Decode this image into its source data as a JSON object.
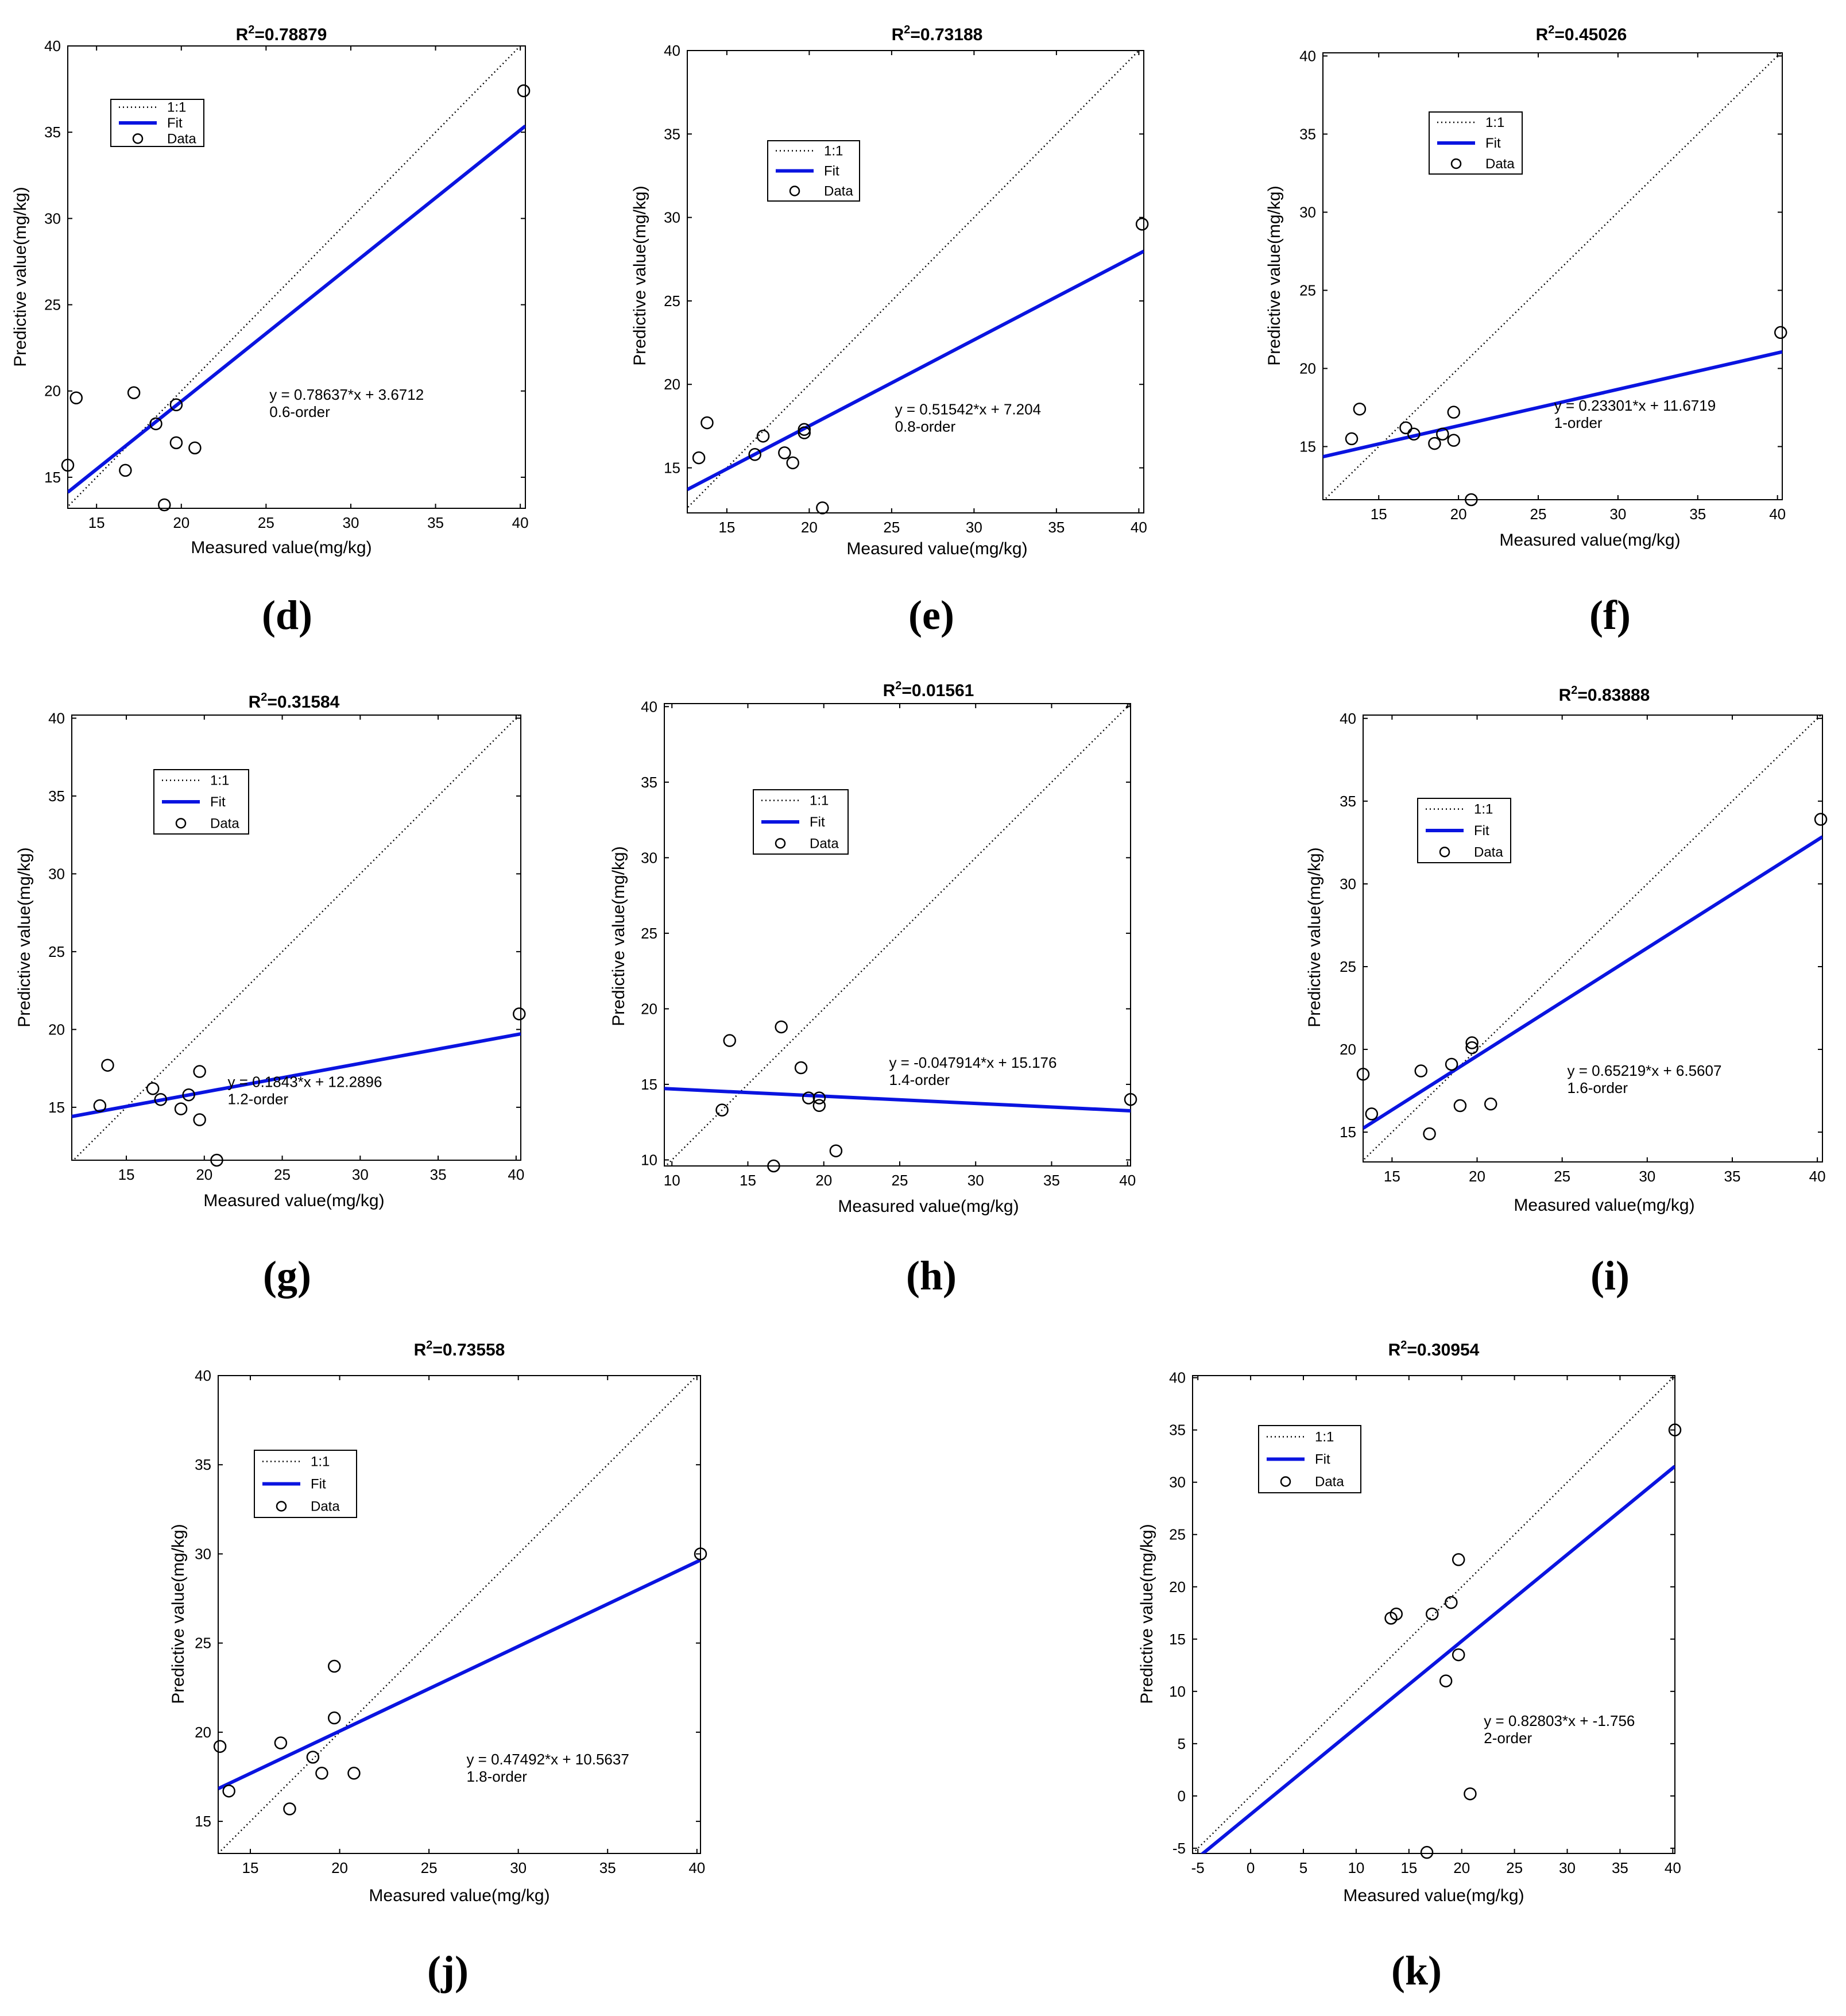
{
  "chart_data": [
    {
      "type": "scatter",
      "panel_label": "(d)",
      "title": "R²=0.78879",
      "xlabel": "Measured value(mg/kg)",
      "ylabel": "Predictive value(mg/kg)",
      "xlim": [
        13.3,
        40.3
      ],
      "ylim": [
        13.2,
        40
      ],
      "xticks": [
        15,
        20,
        25,
        30,
        35,
        40
      ],
      "yticks": [
        15,
        20,
        25,
        30,
        35,
        40
      ],
      "legend": {
        "position": "top-left",
        "entries": [
          "1:1",
          "Fit",
          "Data"
        ]
      },
      "annotation": [
        "y = 0.78637*x + 3.6712",
        "0.6-order"
      ],
      "annotation_at": [
        25.2,
        19.5
      ],
      "fit": {
        "slope": 0.78637,
        "intercept": 3.6712,
        "color": "#0a14e0"
      },
      "points": [
        [
          13.3,
          15.7
        ],
        [
          13.8,
          19.6
        ],
        [
          16.7,
          15.4
        ],
        [
          17.2,
          19.9
        ],
        [
          18.5,
          18.1
        ],
        [
          19.0,
          13.4
        ],
        [
          19.7,
          19.2
        ],
        [
          19.7,
          17.0
        ],
        [
          20.8,
          16.7
        ],
        [
          40.2,
          37.4
        ]
      ]
    },
    {
      "type": "scatter",
      "panel_label": "(e)",
      "title": "R²=0.73188",
      "xlabel": "Measured value(mg/kg)",
      "ylabel": "Predictive value(mg/kg)",
      "xlim": [
        12.6,
        40.3
      ],
      "ylim": [
        12.3,
        40
      ],
      "xticks": [
        15,
        20,
        25,
        30,
        35,
        40
      ],
      "yticks": [
        15,
        20,
        25,
        30,
        35,
        40
      ],
      "legend": {
        "position": "top-left",
        "entries": [
          "1:1",
          "Fit",
          "Data"
        ]
      },
      "annotation": [
        "y = 0.51542*x + 7.204",
        "0.8-order"
      ],
      "annotation_at": [
        25.2,
        18.2
      ],
      "fit": {
        "slope": 0.51542,
        "intercept": 7.204,
        "color": "#0a14e0"
      },
      "points": [
        [
          13.3,
          15.6
        ],
        [
          13.8,
          17.7
        ],
        [
          16.7,
          15.8
        ],
        [
          17.2,
          16.9
        ],
        [
          18.5,
          15.9
        ],
        [
          19.0,
          15.3
        ],
        [
          19.7,
          17.3
        ],
        [
          19.7,
          17.1
        ],
        [
          20.8,
          12.6
        ],
        [
          40.2,
          29.6
        ]
      ]
    },
    {
      "type": "scatter",
      "panel_label": "(f)",
      "title": "R²=0.45026",
      "xlabel": "Measured value(mg/kg)",
      "ylabel": "Predictive value(mg/kg)",
      "xlim": [
        11.5,
        40.3
      ],
      "ylim": [
        11.6,
        40.2
      ],
      "xticks": [
        15,
        20,
        25,
        30,
        35,
        40
      ],
      "yticks": [
        15,
        20,
        25,
        30,
        35,
        40
      ],
      "legend": {
        "position": "top-left",
        "entries": [
          "1:1",
          "Fit",
          "Data"
        ]
      },
      "annotation": [
        "y = 0.23301*x + 11.6719",
        "1-order"
      ],
      "annotation_at": [
        26.0,
        17.3
      ],
      "fit": {
        "slope": 0.23301,
        "intercept": 11.6719,
        "color": "#0a14e0"
      },
      "points": [
        [
          13.3,
          15.5
        ],
        [
          13.8,
          17.4
        ],
        [
          16.7,
          16.2
        ],
        [
          17.2,
          15.8
        ],
        [
          18.5,
          15.2
        ],
        [
          19.0,
          15.8
        ],
        [
          19.7,
          17.2
        ],
        [
          19.7,
          15.4
        ],
        [
          20.8,
          11.6
        ],
        [
          40.2,
          22.3
        ]
      ]
    },
    {
      "type": "scatter",
      "panel_label": "(g)",
      "title": "R²=0.31584",
      "xlabel": "Measured value(mg/kg)",
      "ylabel": "Predictive value(mg/kg)",
      "xlim": [
        11.5,
        40.3
      ],
      "ylim": [
        11.6,
        40.2
      ],
      "xticks": [
        15,
        20,
        25,
        30,
        35,
        40
      ],
      "yticks": [
        15,
        20,
        25,
        30,
        35,
        40
      ],
      "legend": {
        "position": "top-left",
        "entries": [
          "1:1",
          "Fit",
          "Data"
        ]
      },
      "annotation": [
        "y = 0.1843*x + 12.2896",
        "1.2-order"
      ],
      "annotation_at": [
        21.5,
        16.3
      ],
      "fit": {
        "slope": 0.1843,
        "intercept": 12.2896,
        "color": "#0a14e0"
      },
      "points": [
        [
          13.3,
          15.1
        ],
        [
          13.8,
          17.7
        ],
        [
          16.7,
          16.2
        ],
        [
          17.2,
          15.5
        ],
        [
          18.5,
          14.9
        ],
        [
          19.0,
          15.8
        ],
        [
          19.7,
          17.3
        ],
        [
          19.7,
          14.2
        ],
        [
          20.8,
          11.6
        ],
        [
          40.2,
          21.0
        ]
      ]
    },
    {
      "type": "scatter",
      "panel_label": "(h)",
      "title": "R²=0.01561",
      "xlabel": "Measured value(mg/kg)",
      "ylabel": "Predictive value(mg/kg)",
      "xlim": [
        9.5,
        40.2
      ],
      "ylim": [
        9.6,
        40.2
      ],
      "xticks": [
        10,
        15,
        20,
        25,
        30,
        35,
        40
      ],
      "yticks": [
        10,
        15,
        20,
        25,
        30,
        35,
        40
      ],
      "legend": {
        "position": "top-left",
        "entries": [
          "1:1",
          "Fit",
          "Data"
        ]
      },
      "annotation": [
        "y = -0.047914*x + 15.176",
        "1.4-order"
      ],
      "annotation_at": [
        24.3,
        16.1
      ],
      "fit": {
        "slope": -0.047914,
        "intercept": 15.176,
        "color": "#0a14e0"
      },
      "points": [
        [
          13.3,
          13.3
        ],
        [
          13.8,
          17.9
        ],
        [
          16.7,
          9.6
        ],
        [
          17.2,
          18.8
        ],
        [
          18.5,
          16.1
        ],
        [
          19.0,
          14.1
        ],
        [
          19.7,
          14.1
        ],
        [
          19.7,
          13.6
        ],
        [
          20.8,
          10.6
        ],
        [
          40.2,
          14.0
        ]
      ]
    },
    {
      "type": "scatter",
      "panel_label": "(i)",
      "title": "R²=0.83888",
      "xlabel": "Measured value(mg/kg)",
      "ylabel": "Predictive value(mg/kg)",
      "xlim": [
        13.3,
        40.3
      ],
      "ylim": [
        13.2,
        40.2
      ],
      "xticks": [
        15,
        20,
        25,
        30,
        35,
        40
      ],
      "yticks": [
        15,
        20,
        25,
        30,
        35,
        40
      ],
      "legend": {
        "position": "top-left",
        "entries": [
          "1:1",
          "Fit",
          "Data"
        ]
      },
      "annotation": [
        "y = 0.65219*x + 6.5607",
        "1.6-order"
      ],
      "annotation_at": [
        25.3,
        18.4
      ],
      "fit": {
        "slope": 0.65219,
        "intercept": 6.5607,
        "color": "#0a14e0"
      },
      "points": [
        [
          13.3,
          18.5
        ],
        [
          13.8,
          16.1
        ],
        [
          16.7,
          18.7
        ],
        [
          17.2,
          14.9
        ],
        [
          18.5,
          19.1
        ],
        [
          19.0,
          16.6
        ],
        [
          19.7,
          20.1
        ],
        [
          19.7,
          20.4
        ],
        [
          20.8,
          16.7
        ],
        [
          40.2,
          33.9
        ]
      ]
    },
    {
      "type": "scatter",
      "panel_label": "(j)",
      "title": "R²=0.73558",
      "xlabel": "Measured value(mg/kg)",
      "ylabel": "Predictive value(mg/kg)",
      "xlim": [
        13.2,
        40.2
      ],
      "ylim": [
        13.2,
        40
      ],
      "xticks": [
        15,
        20,
        25,
        30,
        35,
        40
      ],
      "yticks": [
        15,
        20,
        25,
        30,
        35,
        40
      ],
      "legend": {
        "position": "top-left",
        "entries": [
          "1:1",
          "Fit",
          "Data"
        ]
      },
      "annotation": [
        "y = 0.47492*x + 10.5637",
        "1.8-order"
      ],
      "annotation_at": [
        27.1,
        18.2
      ],
      "fit": {
        "slope": 0.47492,
        "intercept": 10.5637,
        "color": "#0a14e0"
      },
      "points": [
        [
          13.3,
          19.2
        ],
        [
          13.8,
          16.7
        ],
        [
          16.7,
          19.4
        ],
        [
          17.2,
          15.7
        ],
        [
          18.5,
          18.6
        ],
        [
          19.0,
          17.7
        ],
        [
          19.7,
          20.8
        ],
        [
          19.7,
          23.7
        ],
        [
          20.8,
          17.7
        ],
        [
          40.2,
          30.0
        ]
      ]
    },
    {
      "type": "scatter",
      "panel_label": "(k)",
      "title": "R²=0.30954",
      "xlabel": "Measured value(mg/kg)",
      "ylabel": "Predictive value(mg/kg)",
      "xlim": [
        -5.5,
        40.2
      ],
      "ylim": [
        -5.5,
        40.2
      ],
      "xticks": [
        -5,
        0,
        5,
        10,
        15,
        20,
        25,
        30,
        35,
        40
      ],
      "yticks": [
        -5,
        0,
        5,
        10,
        15,
        20,
        25,
        30,
        35,
        40
      ],
      "legend": {
        "position": "top-left",
        "entries": [
          "1:1",
          "Fit",
          "Data"
        ]
      },
      "annotation": [
        "y = 0.82803*x + -1.756",
        "2-order"
      ],
      "annotation_at": [
        22.1,
        6.7
      ],
      "fit": {
        "slope": 0.82803,
        "intercept": -1.756,
        "color": "#0a14e0"
      },
      "points": [
        [
          13.3,
          17.0
        ],
        [
          13.8,
          17.4
        ],
        [
          16.7,
          -5.4
        ],
        [
          17.2,
          17.4
        ],
        [
          18.5,
          11.0
        ],
        [
          19.0,
          18.5
        ],
        [
          19.7,
          22.6
        ],
        [
          19.7,
          13.5
        ],
        [
          20.8,
          0.2
        ],
        [
          40.2,
          35.0
        ]
      ]
    }
  ]
}
